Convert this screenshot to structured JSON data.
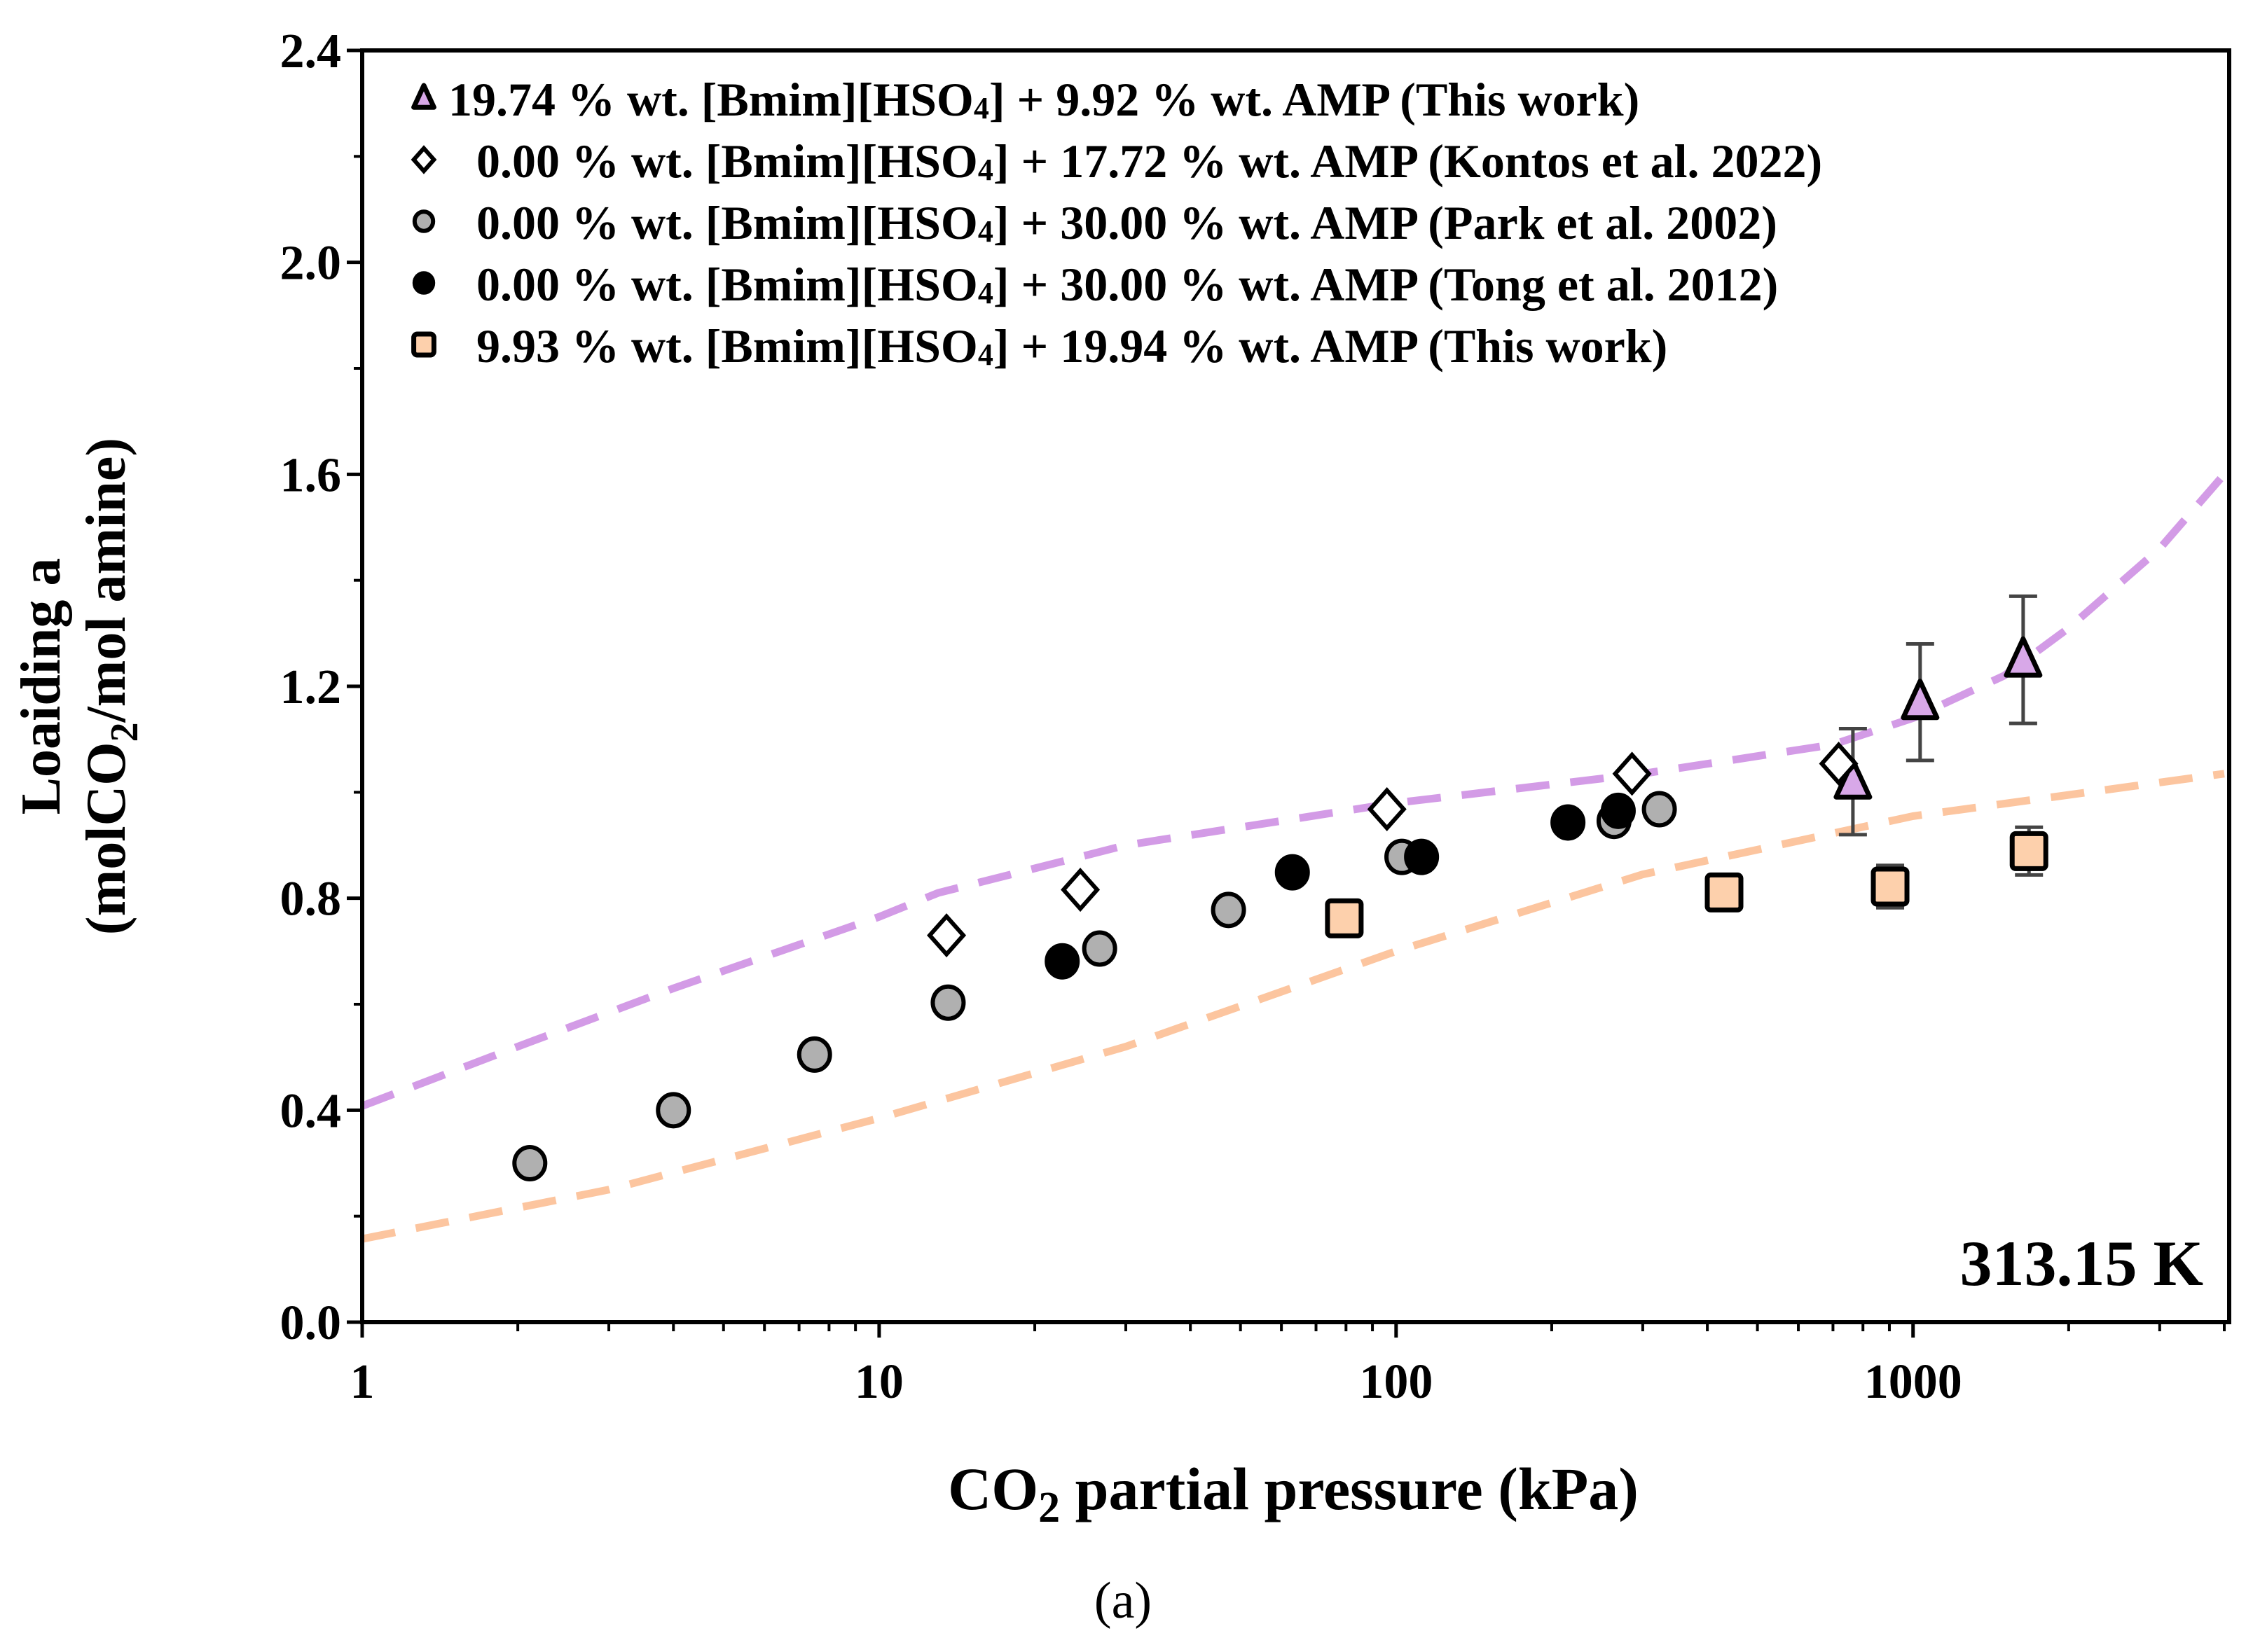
{
  "chart_data": {
    "type": "scatter",
    "title": "",
    "xlabel": "CO2 partial pressure (kPa)",
    "xlabel_parts": {
      "pre": "CO",
      "sub": "2",
      "post": " partial pressure (kPa)"
    },
    "ylabel_line1": "Loaiding a",
    "ylabel_line2_parts": {
      "pre": "(molCO",
      "sub": "2",
      "post": "/mol amine)"
    },
    "xscale": "log",
    "xlim": [
      1,
      4000
    ],
    "ylim": [
      0,
      2.4
    ],
    "xticks": [
      1,
      10,
      100,
      1000
    ],
    "xtick_labels": [
      "1",
      "10",
      "100",
      "1000"
    ],
    "yticks": [
      0,
      0.4,
      0.8,
      1.2,
      1.6,
      2.0,
      2.4
    ],
    "ytick_labels": [
      "0.0",
      "0.4",
      "0.8",
      "1.2",
      "1.6",
      "2.0",
      "2.4"
    ],
    "annotation": "313.15 K",
    "caption": "(a)",
    "legend_position": "top-left",
    "series": [
      {
        "name": "19.74 % wt. [Bmim][HSO4] + 9.92 % wt. AMP (This work)",
        "label_parts": [
          "19.74 % wt. [Bmim][HSO",
          "4",
          "] + 9.92 % wt. AMP (This work)"
        ],
        "marker": "triangle",
        "color": "#d8a8e8",
        "x": [
          765,
          1032,
          1633
        ],
        "y": [
          1.02,
          1.17,
          1.25
        ],
        "yerr": [
          0.1,
          0.11,
          0.12
        ]
      },
      {
        "name": "0.00 % wt. [Bmim][HSO4] + 17.72 % wt. AMP (Kontos et al. 2022)",
        "label_parts": [
          "0.00 % wt. [Bmim][HSO",
          "4",
          "] + 17.72 % wt. AMP (Kontos et al. 2022)"
        ],
        "marker": "diamond",
        "color": "#ffffff",
        "x": [
          13.5,
          24.5,
          96,
          286,
          718
        ],
        "y": [
          0.73,
          0.816,
          0.968,
          1.035,
          1.054
        ]
      },
      {
        "name": "0.00 % wt. [Bmim][HSO4] + 30.00 % wt. AMP (Park et al. 2002)",
        "label_parts": [
          "0.00 % wt. [Bmim][HSO",
          "4",
          "] + 30.00 % wt. AMP (Park et al. 2002)"
        ],
        "marker": "circle",
        "color": "#b0b0b0",
        "x": [
          2.11,
          4.0,
          7.5,
          13.6,
          26.7,
          47.4,
          102.6,
          264,
          323
        ],
        "y": [
          0.3,
          0.4,
          0.505,
          0.603,
          0.705,
          0.778,
          0.878,
          0.946,
          0.968
        ]
      },
      {
        "name": "0.00 % wt. [Bmim][HSO4] + 30.00 % wt. AMP (Tong et al. 2012)",
        "label_parts": [
          "0.00 % wt. [Bmim][HSO",
          "4",
          "] + 30.00 % wt. AMP (Tong et al. 2012)"
        ],
        "marker": "circle",
        "color": "#000000",
        "x": [
          22.6,
          63,
          112,
          215,
          269
        ],
        "y": [
          0.681,
          0.849,
          0.878,
          0.943,
          0.965
        ]
      },
      {
        "name": "9.93 % wt. [Bmim][HSO4] + 19.94 % wt. AMP (This work)",
        "label_parts": [
          "9.93 % wt. [Bmim][HSO",
          "4",
          "] + 19.94 % wt. AMP (This work)"
        ],
        "marker": "square",
        "color": "#fdd0ac",
        "x": [
          79.4,
          431,
          903,
          1676
        ],
        "y": [
          0.762,
          0.811,
          0.822,
          0.889
        ],
        "yerr": [
          0,
          0,
          0.04,
          0.045
        ]
      }
    ],
    "model_curves": [
      {
        "name": "model-purple",
        "color": "#d39be6",
        "style": "dashed",
        "x": [
          1,
          2,
          4,
          10,
          13,
          30,
          100,
          300,
          700,
          1000,
          1500,
          2000,
          3000,
          4000
        ],
        "y": [
          0.408,
          0.52,
          0.63,
          0.765,
          0.81,
          0.9,
          0.98,
          1.035,
          1.09,
          1.14,
          1.22,
          1.31,
          1.46,
          1.6
        ]
      },
      {
        "name": "model-orange",
        "color": "#fcc59f",
        "style": "dashed",
        "x": [
          1,
          3,
          10,
          30,
          100,
          300,
          1000,
          4000
        ],
        "y": [
          0.157,
          0.25,
          0.385,
          0.52,
          0.7,
          0.845,
          0.955,
          1.035
        ]
      }
    ]
  }
}
